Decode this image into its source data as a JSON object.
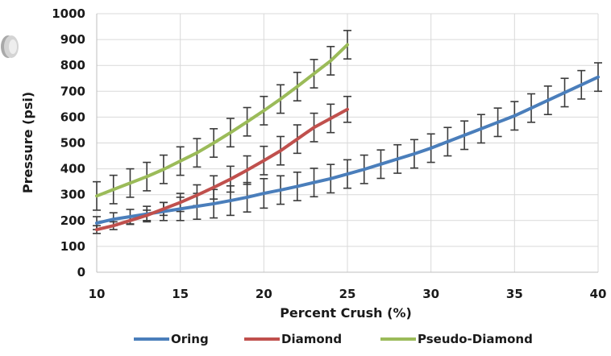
{
  "chart_data": {
    "type": "line",
    "title": "",
    "xlabel": "Percent Crush (%)",
    "ylabel": "Pressure (psi)",
    "xlim": [
      10,
      40
    ],
    "ylim": [
      0,
      1000
    ],
    "x_ticks": [
      10,
      15,
      20,
      25,
      30,
      35,
      40
    ],
    "y_ticks": [
      0,
      100,
      200,
      300,
      400,
      500,
      600,
      700,
      800,
      900,
      1000
    ],
    "grid": true,
    "legend_position": "bottom",
    "series": [
      {
        "name": "Oring",
        "color": "#4a7ebb",
        "x": [
          10,
          11,
          12,
          13,
          14,
          15,
          16,
          17,
          18,
          19,
          20,
          21,
          22,
          23,
          24,
          25,
          26,
          27,
          28,
          29,
          30,
          31,
          32,
          33,
          34,
          35,
          36,
          37,
          38,
          39,
          40
        ],
        "y": [
          190,
          205,
          215,
          225,
          235,
          245,
          255,
          265,
          277,
          290,
          305,
          318,
          332,
          347,
          362,
          380,
          398,
          418,
          438,
          458,
          480,
          505,
          530,
          555,
          580,
          605,
          635,
          665,
          695,
          725,
          755
        ],
        "error_bars": true,
        "error": [
          25,
          25,
          28,
          30,
          35,
          45,
          50,
          55,
          57,
          57,
          57,
          55,
          55,
          55,
          55,
          55,
          55,
          55,
          55,
          55,
          55,
          55,
          55,
          55,
          55,
          55,
          55,
          55,
          55,
          55,
          55
        ]
      },
      {
        "name": "Diamond",
        "color": "#c0504d",
        "x": [
          10,
          11,
          12,
          13,
          14,
          15,
          16,
          17,
          18,
          19,
          20,
          21,
          22,
          23,
          24,
          25
        ],
        "y": [
          165,
          180,
          200,
          220,
          245,
          270,
          298,
          328,
          360,
          395,
          432,
          470,
          515,
          560,
          595,
          630
        ],
        "error_bars": true,
        "error": [
          15,
          15,
          15,
          20,
          25,
          35,
          40,
          45,
          50,
          55,
          55,
          55,
          55,
          55,
          55,
          50
        ]
      },
      {
        "name": "Pseudo-Diamond",
        "color": "#9bbb59",
        "x": [
          10,
          11,
          12,
          13,
          14,
          15,
          16,
          17,
          18,
          19,
          20,
          21,
          22,
          23,
          24,
          25
        ],
        "y": [
          295,
          320,
          345,
          370,
          398,
          430,
          462,
          500,
          540,
          582,
          625,
          670,
          718,
          768,
          818,
          880
        ],
        "error_bars": true,
        "error": [
          55,
          55,
          55,
          55,
          55,
          55,
          55,
          55,
          55,
          55,
          55,
          55,
          55,
          55,
          55,
          55
        ]
      }
    ]
  }
}
